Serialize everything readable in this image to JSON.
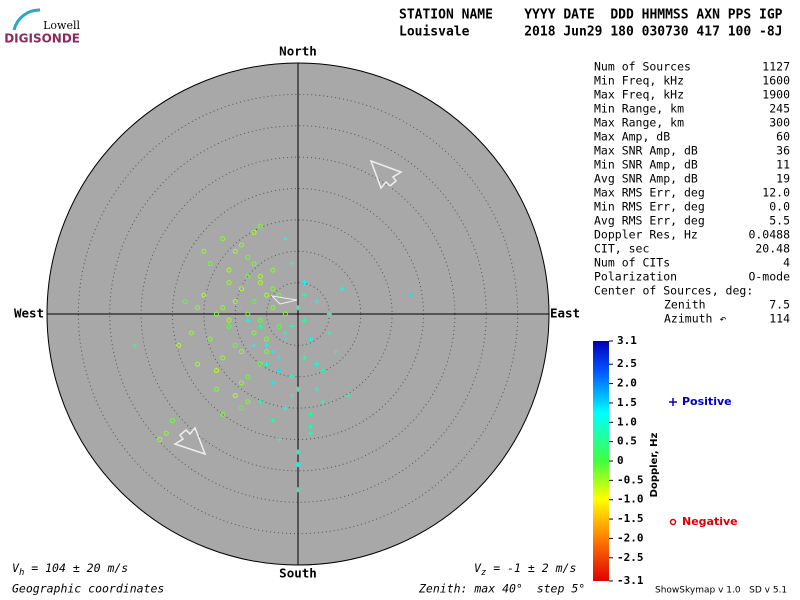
{
  "logo": {
    "top": "Lowell",
    "bottom": "DIGISONDE"
  },
  "header": [
    "STATION NAME    YYYY DATE  DDD HHMMSS AXN PPS IGP",
    "Louisvale       2018 Jun29 180 030730 417 100 -8J"
  ],
  "stats": {
    "rows": [
      [
        "Num of Sources",
        "1127"
      ],
      [
        "Min Freq, kHz",
        "1600"
      ],
      [
        "Max Freq, kHz",
        "1900"
      ],
      [
        "Min Range, km",
        "245"
      ],
      [
        "Max Range, km",
        "300"
      ],
      [
        "Max Amp, dB",
        "60"
      ],
      [
        "Max SNR Amp, dB",
        "36"
      ],
      [
        "Min SNR Amp, dB",
        "11"
      ],
      [
        "Avg SNR Amp, dB",
        "19"
      ],
      [
        "Max RMS Err, deg",
        "12.0"
      ],
      [
        "Min RMS Err, deg",
        "0.0"
      ],
      [
        "Avg RMS Err, deg",
        "5.5"
      ],
      [
        "Doppler Res, Hz",
        "0.0488"
      ],
      [
        "CIT, sec",
        "20.48"
      ],
      [
        "Num of CITs",
        "4"
      ],
      [
        "Polarization",
        "O-mode"
      ],
      [
        "Center of Sources, deg:"
      ]
    ],
    "center": [
      [
        "Zenith",
        "7.5"
      ],
      [
        "Azimuth ↶",
        "114"
      ]
    ]
  },
  "footer": {
    "vh": {
      "symbol": "V",
      "sub": "h",
      "text": " = 104 ± 20 m/s"
    },
    "vz": {
      "symbol": "V",
      "sub": "z",
      "text": " = -1 ± 2 m/s"
    },
    "coords": "Geographic coordinates",
    "zenith": "Zenith: max 40°  step 5°",
    "version": "ShowSkymap v 1.0   SD v 5.1"
  },
  "chart_data": {
    "type": "skymap",
    "directions": {
      "north": "North",
      "south": "South",
      "east": "East",
      "west": "West"
    },
    "rlim": [
      0,
      40
    ],
    "rticks": [
      5,
      10,
      15,
      20,
      25,
      30,
      35,
      40
    ],
    "colorbar_label": "Doppler, Hz",
    "zlim": [
      -3.1,
      3.1
    ],
    "zticks": [
      3.1,
      2.5,
      {
        "value": 2,
        "label": "2.0"
      },
      1.5,
      {
        "value": 1,
        "label": "1.0"
      },
      0.5,
      0,
      -0.5,
      {
        "value": -1,
        "label": "-1.0"
      },
      -1.5,
      {
        "value": -2,
        "label": "-2.0"
      },
      -2.5,
      -3.1
    ],
    "series": [
      {
        "name": "Positive",
        "color": "#0000c8",
        "marker": "plus",
        "x": [
          -2,
          -5,
          1,
          3,
          -1,
          -4,
          0,
          2,
          -6,
          -3,
          5,
          4,
          -2,
          1,
          -7,
          -1,
          3,
          0,
          -4,
          2,
          6,
          -3,
          -1,
          1,
          -5,
          0,
          4,
          -2,
          2,
          -8,
          3,
          -6,
          1,
          -1,
          7,
          -4,
          0,
          5,
          -3,
          2,
          -26,
          18,
          0,
          -2,
          8
        ],
        "y": [
          -3,
          -5,
          -1,
          -8,
          -10,
          -6,
          -12,
          -4,
          -2,
          -9,
          -3,
          -14,
          -15,
          -7,
          -5,
          -2,
          2,
          1,
          -11,
          -18,
          -6,
          -20,
          -13,
          3,
          -8,
          -24,
          -9,
          -4,
          -16,
          -1,
          -12,
          -14,
          5,
          8,
          4,
          -17,
          -22,
          0,
          -7,
          -19,
          -5,
          3,
          -28,
          12,
          -13
        ],
        "doppler": [
          0.8,
          1.2,
          0.6,
          1.0,
          0.9,
          1.3,
          0.7,
          1.1,
          0.5,
          1.4,
          0.9,
          0.8,
          1.2,
          0.6,
          1.0,
          0.7,
          1.1,
          0.9,
          1.3,
          0.8,
          0.6,
          1.0,
          1.2,
          0.7,
          0.9,
          1.1,
          0.8,
          1.3,
          0.6,
          1.0,
          0.9,
          0.7,
          1.2,
          0.8,
          1.1,
          0.6,
          1.0,
          0.9,
          1.3,
          0.7,
          0.5,
          1.4,
          0.8,
          1.0,
          0.9
        ]
      },
      {
        "name": "Negative",
        "color": "#e00000",
        "marker": "circle",
        "x": [
          -8,
          -10,
          -6,
          -12,
          -9,
          -7,
          -11,
          -5,
          -13,
          -8,
          -4,
          -14,
          -6,
          -10,
          -9,
          -15,
          -7,
          -3,
          -11,
          -12,
          -8,
          -16,
          -5,
          -10,
          -6,
          -9,
          -13,
          -4,
          -7,
          -11,
          -17,
          -8,
          -2,
          -12,
          -6,
          -14,
          -9,
          -10,
          -5,
          -18,
          -7,
          -11,
          -3,
          -13,
          -8,
          -22,
          -20,
          -15,
          -19,
          -6,
          -9,
          -16,
          -21,
          -12,
          -4
        ],
        "y": [
          0,
          2,
          -1,
          1,
          4,
          -3,
          -2,
          3,
          0,
          6,
          1,
          -4,
          5,
          -5,
          -6,
          3,
          8,
          -2,
          7,
          -7,
          9,
          1,
          -4,
          10,
          -8,
          11,
          -9,
          4,
          2,
          -1,
          -3,
          -10,
          0,
          12,
          6,
          8,
          -11,
          -13,
          -6,
          2,
          13,
          5,
          3,
          -12,
          -14,
          -20,
          -17,
          10,
          -5,
          14,
          -15,
          -8,
          -19,
          -16,
          7
        ],
        "doppler": [
          -0.3,
          -0.5,
          -0.2,
          -0.4,
          -0.6,
          -0.3,
          -0.1,
          -0.5,
          -0.4,
          -0.2,
          -0.3,
          -0.3,
          -0.5,
          -0.2,
          -0.4,
          -0.6,
          -0.3,
          -0.1,
          -0.5,
          -0.4,
          -0.2,
          -0.3,
          -0.3,
          -0.5,
          -0.2,
          -0.4,
          -0.6,
          -0.3,
          -0.1,
          -0.5,
          -0.4,
          -0.2,
          -0.3,
          -0.3,
          -0.5,
          -0.2,
          -0.4,
          -0.6,
          -0.3,
          -0.1,
          -0.5,
          -0.4,
          -0.2,
          -0.3,
          -0.3,
          -0.5,
          -0.2,
          -0.4,
          -0.6,
          -0.3,
          -0.1,
          -0.5,
          -0.4,
          -0.2,
          -0.3
        ]
      }
    ]
  }
}
